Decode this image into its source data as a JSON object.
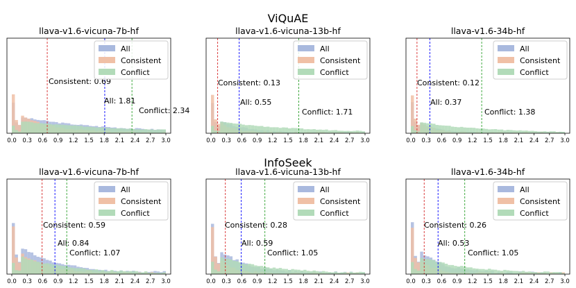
{
  "figure": {
    "row_titles": [
      "ViQuAE",
      "InfoSeek"
    ],
    "legend_labels": [
      "All",
      "Consistent",
      "Conflict"
    ],
    "colors": {
      "all": "#a9b9de",
      "consistent": "#f0c0a6",
      "conflict": "#b2dbb9",
      "all_line": "#0000ff",
      "consistent_line": "#d62728",
      "conflict_line": "#2ca02c"
    },
    "x_ticks": [
      "0.0",
      "0.3",
      "0.6",
      "0.9",
      "1.2",
      "1.5",
      "1.8",
      "2.1",
      "2.4",
      "2.7",
      "3.0"
    ]
  },
  "chart_data": [
    {
      "type": "histogram",
      "dataset": "ViQuAE",
      "title": "llava-v1.6-vicuna-7b-hf",
      "xlim": [
        0,
        3.0
      ],
      "bins": 50,
      "means": {
        "all": 1.81,
        "consistent": 0.69,
        "conflict": 2.34
      },
      "labels": {
        "consistent": "Consistent: 0.69",
        "all": "All: 1.81",
        "conflict": "Conflict: 2.34"
      }
    },
    {
      "type": "histogram",
      "dataset": "ViQuAE",
      "title": "llava-v1.6-vicuna-13b-hf",
      "xlim": [
        0,
        3.0
      ],
      "bins": 50,
      "means": {
        "all": 0.55,
        "consistent": 0.13,
        "conflict": 1.71
      },
      "labels": {
        "consistent": "Consistent: 0.13",
        "all": "All: 0.55",
        "conflict": "Conflict: 1.71"
      }
    },
    {
      "type": "histogram",
      "dataset": "ViQuAE",
      "title": "llava-v1.6-34b-hf",
      "xlim": [
        0,
        3.0
      ],
      "bins": 50,
      "means": {
        "all": 0.37,
        "consistent": 0.12,
        "conflict": 1.38
      },
      "labels": {
        "consistent": "Consistent: 0.12",
        "all": "All: 0.37",
        "conflict": "Conflict: 1.38"
      }
    },
    {
      "type": "histogram",
      "dataset": "InfoSeek",
      "title": "llava-v1.6-vicuna-7b-hf",
      "xlim": [
        0,
        3.0
      ],
      "bins": 50,
      "means": {
        "all": 0.84,
        "consistent": 0.59,
        "conflict": 1.07
      },
      "labels": {
        "consistent": "Consistent: 0.59",
        "all": "All: 0.84",
        "conflict": "Conflict: 1.07"
      }
    },
    {
      "type": "histogram",
      "dataset": "InfoSeek",
      "title": "llava-v1.6-vicuna-13b-hf",
      "xlim": [
        0,
        3.0
      ],
      "bins": 50,
      "means": {
        "all": 0.59,
        "consistent": 0.28,
        "conflict": 1.05
      },
      "labels": {
        "consistent": "Consistent: 0.28",
        "all": "All: 0.59",
        "conflict": "Conflict: 1.05"
      }
    },
    {
      "type": "histogram",
      "dataset": "InfoSeek",
      "title": "llava-v1.6-34b-hf",
      "xlim": [
        0,
        3.0
      ],
      "bins": 50,
      "means": {
        "all": 0.53,
        "consistent": 0.26,
        "conflict": 1.05
      },
      "labels": {
        "consistent": "Consistent: 0.26",
        "all": "All: 0.53",
        "conflict": "Conflict: 1.05"
      }
    }
  ]
}
